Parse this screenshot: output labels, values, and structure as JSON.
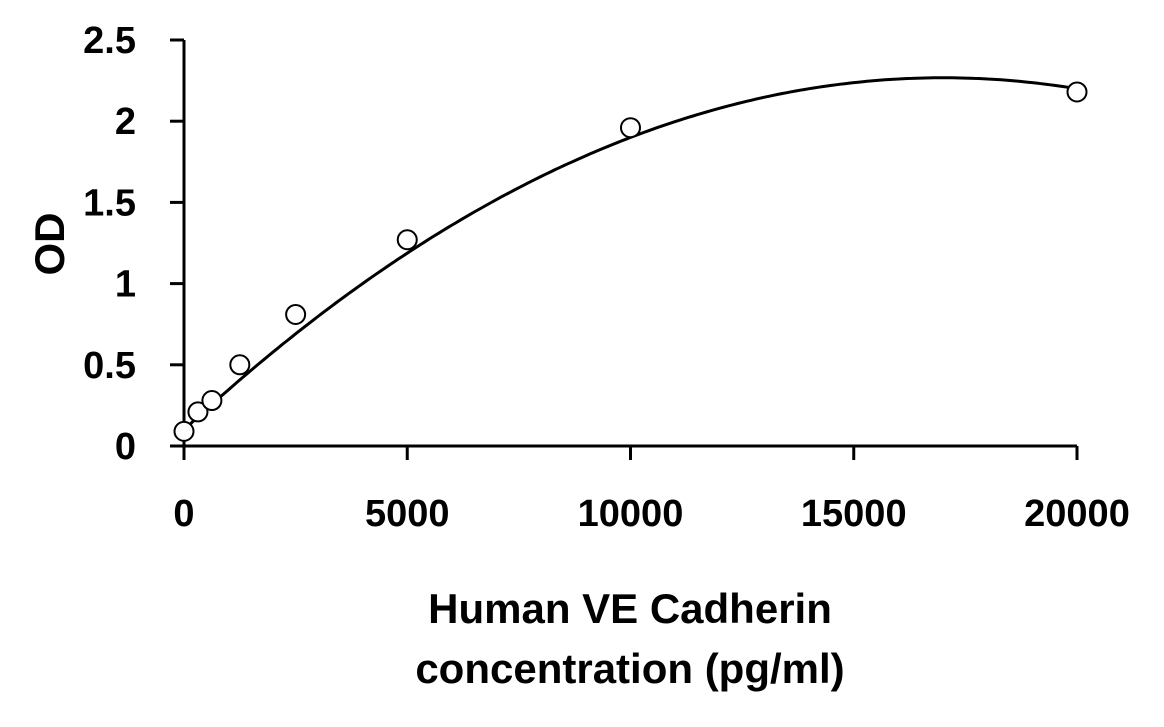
{
  "chart_data": {
    "type": "scatter",
    "title": "",
    "xlabel_lines": [
      "Human VE Cadherin",
      "concentration (pg/ml)"
    ],
    "ylabel": "OD",
    "xlim": [
      0,
      20000
    ],
    "ylim": [
      0,
      2.5
    ],
    "x_ticks": [
      0,
      5000,
      10000,
      15000,
      20000
    ],
    "x_tick_labels": [
      "0",
      "5000",
      "10000",
      "15000",
      "20000"
    ],
    "y_ticks": [
      0,
      0.5,
      1,
      1.5,
      2,
      2.5
    ],
    "y_tick_labels": [
      "0",
      "0.5",
      "1",
      "1.5",
      "2",
      "2.5"
    ],
    "grid": false,
    "legend": "none",
    "series": [
      {
        "marker": "open-circle",
        "x": [
          0,
          312.5,
          625,
          1250,
          2500,
          5000,
          10000,
          20000
        ],
        "y": [
          0.09,
          0.21,
          0.28,
          0.5,
          0.81,
          1.27,
          1.96,
          2.18
        ]
      }
    ],
    "fit_curve": {
      "type": "polynomial-fit",
      "coefficients_high_to_low": [
        -7.5e-09,
        0.000255,
        0.1
      ],
      "x_range": [
        0,
        20000
      ]
    },
    "colors": {
      "line": "#000000",
      "marker_fill": "#ffffff",
      "axis": "#000000"
    }
  }
}
